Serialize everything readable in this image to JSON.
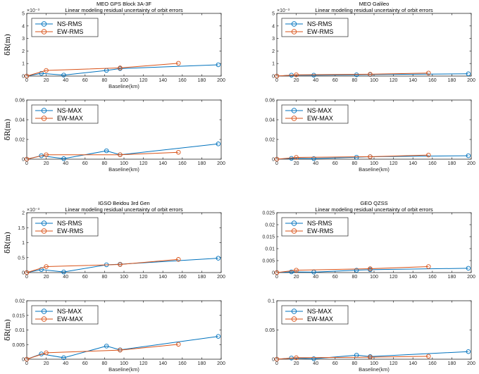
{
  "colors": {
    "ns": "#0072BD",
    "ew": "#D95319",
    "axis": "#262626"
  },
  "chart_data": [
    {
      "type": "line",
      "panel": "top-left-upper",
      "title": "MEO GPS Block 3A-3F",
      "subtitle": "Linear modeling residual uncertainty of orbit errors",
      "xlabel": "Baseline(km)",
      "ylabel": "δR(m)",
      "exponent_label": "×10⁻³",
      "xlim": [
        0,
        200
      ],
      "ylim": [
        0,
        5
      ],
      "xticks": [
        "0",
        "20",
        "40",
        "60",
        "80",
        "100",
        "120",
        "140",
        "160",
        "180",
        "200"
      ],
      "yticks": [
        "0",
        "1",
        "2",
        "3",
        "4",
        "5"
      ],
      "legend_position": "top-left",
      "series": [
        {
          "name": "NS-RMS",
          "color": "ns",
          "x": [
            0,
            15,
            38,
            82,
            96,
            197
          ],
          "y": [
            0,
            0.22,
            0.08,
            0.45,
            0.6,
            0.9
          ]
        },
        {
          "name": "EW-RMS",
          "color": "ew",
          "x": [
            0,
            20,
            96,
            156
          ],
          "y": [
            0,
            0.45,
            0.65,
            1.02
          ]
        }
      ]
    },
    {
      "type": "line",
      "panel": "top-left-lower",
      "title": "",
      "subtitle": "",
      "xlabel": "Baseline(km)",
      "ylabel": "δR(m)",
      "exponent_label": "",
      "xlim": [
        0,
        200
      ],
      "ylim": [
        0,
        0.06
      ],
      "xticks": [
        "0",
        "20",
        "40",
        "60",
        "80",
        "100",
        "120",
        "140",
        "160",
        "180",
        "200"
      ],
      "yticks": [
        "0",
        "0.02",
        "0.04",
        "0.06"
      ],
      "legend_position": "top-left",
      "series": [
        {
          "name": "NS-MAX",
          "color": "ns",
          "x": [
            0,
            15,
            38,
            82,
            96,
            197
          ],
          "y": [
            0,
            0.0035,
            0.0005,
            0.0085,
            0.0045,
            0.0155
          ]
        },
        {
          "name": "EW-MAX",
          "color": "ew",
          "x": [
            0,
            20,
            96,
            156
          ],
          "y": [
            0,
            0.0045,
            0.0045,
            0.007
          ]
        }
      ]
    },
    {
      "type": "line",
      "panel": "top-right-upper",
      "title": "MEO Galileo",
      "subtitle": "Linear modeling residual uncertainty of orbit errors",
      "xlabel": "",
      "ylabel": "",
      "exponent_label": "×10⁻³",
      "xlim": [
        0,
        200
      ],
      "ylim": [
        0,
        5
      ],
      "xticks": [
        "0",
        "20",
        "40",
        "60",
        "80",
        "100",
        "120",
        "140",
        "160",
        "180",
        "200"
      ],
      "yticks": [
        "0",
        "1",
        "2",
        "3",
        "4",
        "5"
      ],
      "legend_position": "top-left",
      "series": [
        {
          "name": "NS-RMS",
          "color": "ns",
          "x": [
            0,
            15,
            38,
            82,
            96,
            197
          ],
          "y": [
            0,
            0.07,
            0.07,
            0.1,
            0.12,
            0.18
          ]
        },
        {
          "name": "EW-RMS",
          "color": "ew",
          "x": [
            0,
            20,
            96,
            156
          ],
          "y": [
            0,
            0.1,
            0.15,
            0.24
          ]
        }
      ]
    },
    {
      "type": "line",
      "panel": "top-right-lower",
      "title": "",
      "subtitle": "",
      "xlabel": "Baseline(km)",
      "ylabel": "",
      "exponent_label": "",
      "xlim": [
        0,
        200
      ],
      "ylim": [
        0,
        0.06
      ],
      "xticks": [
        "0",
        "20",
        "40",
        "60",
        "80",
        "100",
        "120",
        "140",
        "160",
        "180",
        "200"
      ],
      "yticks": [
        "0",
        "0.02",
        "0.04",
        "0.06"
      ],
      "legend_position": "top-left",
      "series": [
        {
          "name": "NS-MAX",
          "color": "ns",
          "x": [
            0,
            15,
            38,
            82,
            96,
            197
          ],
          "y": [
            0,
            0.0008,
            0.0006,
            0.002,
            0.0025,
            0.0035
          ]
        },
        {
          "name": "EW-MAX",
          "color": "ew",
          "x": [
            0,
            20,
            96,
            156
          ],
          "y": [
            0,
            0.0018,
            0.0025,
            0.0042
          ]
        }
      ]
    },
    {
      "type": "line",
      "panel": "bottom-left-upper",
      "title": "IGSO Beidou 3rd Gen",
      "subtitle": "Linear modeling residual uncertainty of orbit errors",
      "xlabel": "",
      "ylabel": "δR(m)",
      "exponent_label": "×10⁻³",
      "xlim": [
        0,
        200
      ],
      "ylim": [
        0,
        2
      ],
      "xticks": [
        "0",
        "20",
        "40",
        "60",
        "80",
        "100",
        "120",
        "140",
        "160",
        "180",
        "200"
      ],
      "yticks": [
        "0",
        "0.5",
        "1",
        "1.5",
        "2"
      ],
      "legend_position": "top-left",
      "series": [
        {
          "name": "NS-RMS",
          "color": "ns",
          "x": [
            0,
            15,
            38,
            82,
            96,
            197
          ],
          "y": [
            0,
            0.1,
            0.02,
            0.26,
            0.28,
            0.48
          ]
        },
        {
          "name": "EW-RMS",
          "color": "ew",
          "x": [
            0,
            20,
            96,
            156
          ],
          "y": [
            0,
            0.2,
            0.27,
            0.44
          ]
        }
      ]
    },
    {
      "type": "line",
      "panel": "bottom-left-lower",
      "title": "",
      "subtitle": "",
      "xlabel": "Baseline(km)",
      "ylabel": "δR(m)",
      "exponent_label": "",
      "xlim": [
        0,
        200
      ],
      "ylim": [
        0,
        0.02
      ],
      "xticks": [
        "0",
        "20",
        "40",
        "60",
        "80",
        "100",
        "120",
        "140",
        "160",
        "180",
        "200"
      ],
      "yticks": [
        "0",
        "0.005",
        "0.01",
        "0.015",
        "0.02"
      ],
      "legend_position": "top-left",
      "series": [
        {
          "name": "NS-MAX",
          "color": "ns",
          "x": [
            0,
            15,
            38,
            82,
            96,
            197
          ],
          "y": [
            0,
            0.0018,
            0.0005,
            0.0045,
            0.0032,
            0.0078
          ]
        },
        {
          "name": "EW-MAX",
          "color": "ew",
          "x": [
            0,
            20,
            96,
            156
          ],
          "y": [
            0,
            0.0022,
            0.0031,
            0.0051
          ]
        }
      ]
    },
    {
      "type": "line",
      "panel": "bottom-right-upper",
      "title": "GEO QZSS",
      "subtitle": "Linear modeling residual uncertainty of orbit errors",
      "xlabel": "",
      "ylabel": "",
      "exponent_label": "",
      "xlim": [
        0,
        200
      ],
      "ylim": [
        0,
        0.025
      ],
      "xticks": [
        "0",
        "20",
        "40",
        "60",
        "80",
        "100",
        "120",
        "140",
        "160",
        "180",
        "200"
      ],
      "yticks": [
        "0",
        "0.005",
        "0.01",
        "0.015",
        "0.02",
        "0.025"
      ],
      "legend_position": "top-left",
      "series": [
        {
          "name": "NS-RMS",
          "color": "ns",
          "x": [
            0,
            15,
            38,
            82,
            96,
            197
          ],
          "y": [
            0,
            0.0003,
            0.0002,
            0.001,
            0.0012,
            0.0018
          ]
        },
        {
          "name": "EW-RMS",
          "color": "ew",
          "x": [
            0,
            20,
            96,
            156
          ],
          "y": [
            0,
            0.001,
            0.0016,
            0.0025
          ]
        }
      ]
    },
    {
      "type": "line",
      "panel": "bottom-right-lower",
      "title": "",
      "subtitle": "",
      "xlabel": "Baseline(km)",
      "ylabel": "",
      "exponent_label": "",
      "xlim": [
        0,
        200
      ],
      "ylim": [
        0,
        0.1
      ],
      "xticks": [
        "0",
        "20",
        "40",
        "60",
        "80",
        "100",
        "120",
        "140",
        "160",
        "180",
        "200"
      ],
      "yticks": [
        "0",
        "0.05",
        "0.1"
      ],
      "legend_position": "top-left",
      "series": [
        {
          "name": "NS-MAX",
          "color": "ns",
          "x": [
            0,
            15,
            38,
            82,
            96,
            197
          ],
          "y": [
            0,
            0.002,
            0.0008,
            0.007,
            0.0045,
            0.013
          ]
        },
        {
          "name": "EW-MAX",
          "color": "ew",
          "x": [
            0,
            20,
            96,
            156
          ],
          "y": [
            0,
            0.0025,
            0.0035,
            0.005
          ]
        }
      ]
    }
  ]
}
